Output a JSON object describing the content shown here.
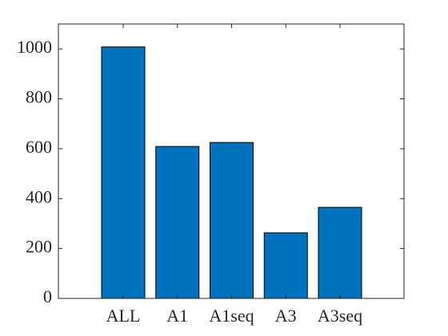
{
  "chart_data": {
    "type": "bar",
    "categories": [
      "ALL",
      "A1",
      "A1seq",
      "A3",
      "A3seq"
    ],
    "values": [
      1008,
      609,
      625,
      263,
      365
    ],
    "color": "#0072bd",
    "ylim": [
      0,
      1100
    ],
    "yticks": [
      0,
      200,
      400,
      600,
      800,
      1000
    ]
  }
}
